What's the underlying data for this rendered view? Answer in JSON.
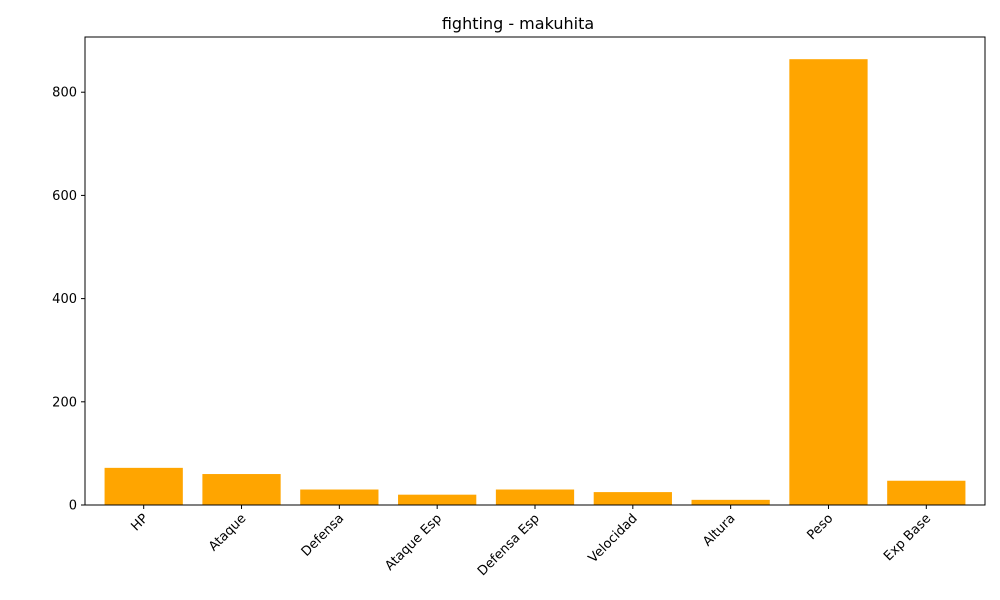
{
  "chart_data": {
    "type": "bar",
    "title": "fighting - makuhita",
    "xlabel": "",
    "ylabel": "",
    "categories": [
      "HP",
      "Ataque",
      "Defensa",
      "Ataque Esp",
      "Defensa Esp",
      "Velocidad",
      "Altura",
      "Peso",
      "Exp Base"
    ],
    "values": [
      72,
      60,
      30,
      20,
      30,
      25,
      10,
      864,
      47
    ],
    "ylim": [
      0,
      907
    ],
    "yticks": [
      0,
      200,
      400,
      600,
      800
    ],
    "bar_color": "#ffa500",
    "grid": false,
    "legend": "none"
  }
}
